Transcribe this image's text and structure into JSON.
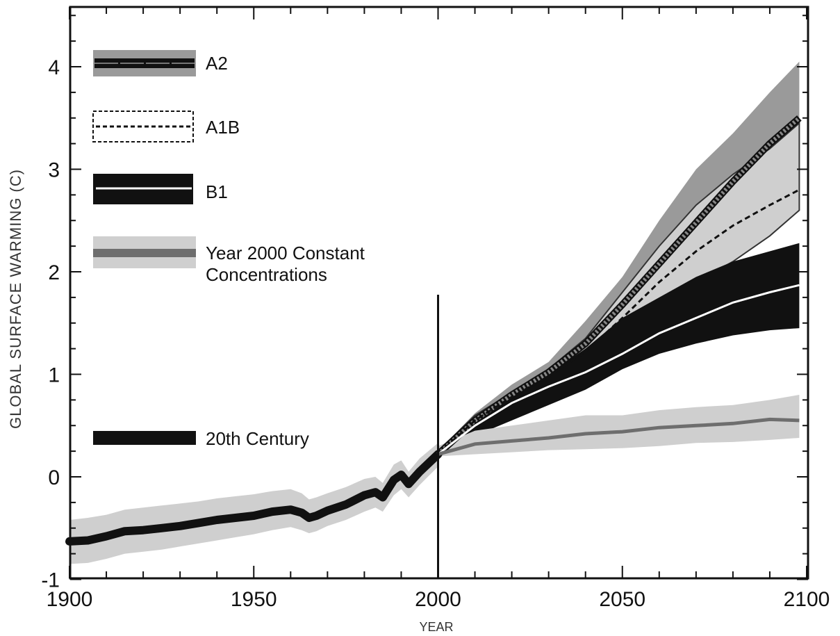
{
  "chart_data": {
    "type": "line",
    "xlabel": "YEAR",
    "ylabel": "GLOBAL SURFACE WARMING (C)",
    "xlim": [
      1900,
      2100
    ],
    "ylim": [
      -1,
      4.5
    ],
    "x_ticks": [
      1900,
      1950,
      2000,
      2050,
      2100
    ],
    "x_tick_labels": [
      "1900",
      "1950",
      "2000",
      "2050",
      "2100"
    ],
    "y_ticks": [
      -1,
      0,
      1,
      2,
      3,
      4
    ],
    "y_tick_labels": [
      "-1",
      "0",
      "1",
      "2",
      "3",
      "4"
    ],
    "vertical_marker_year": 2000,
    "legend_position": "top-left",
    "colors": {
      "black": "#111111",
      "dark_gray": "#6e6e6e",
      "mid_gray": "#9a9a9a",
      "light_gray": "#cfcfcf",
      "white": "#ffffff"
    },
    "series": [
      {
        "name": "20th Century",
        "x": [
          1900,
          1905,
          1910,
          1915,
          1920,
          1925,
          1930,
          1935,
          1940,
          1945,
          1950,
          1955,
          1960,
          1963,
          1965,
          1967,
          1970,
          1975,
          1980,
          1983,
          1985,
          1988,
          1990,
          1992,
          1995,
          2000
        ],
        "values": [
          -0.63,
          -0.62,
          -0.58,
          -0.53,
          -0.52,
          -0.5,
          -0.48,
          -0.45,
          -0.42,
          -0.4,
          -0.38,
          -0.34,
          -0.32,
          -0.35,
          -0.4,
          -0.38,
          -0.33,
          -0.27,
          -0.18,
          -0.15,
          -0.2,
          -0.03,
          0.02,
          -0.07,
          0.05,
          0.22
        ],
        "lower": [
          -0.85,
          -0.84,
          -0.8,
          -0.75,
          -0.73,
          -0.71,
          -0.68,
          -0.65,
          -0.62,
          -0.59,
          -0.56,
          -0.52,
          -0.49,
          -0.52,
          -0.55,
          -0.53,
          -0.48,
          -0.42,
          -0.34,
          -0.3,
          -0.34,
          -0.18,
          -0.12,
          -0.2,
          -0.08,
          0.1
        ],
        "upper": [
          -0.42,
          -0.4,
          -0.37,
          -0.32,
          -0.3,
          -0.28,
          -0.26,
          -0.24,
          -0.21,
          -0.19,
          -0.17,
          -0.14,
          -0.12,
          -0.16,
          -0.22,
          -0.2,
          -0.16,
          -0.1,
          -0.02,
          0.0,
          -0.06,
          0.12,
          0.16,
          0.05,
          0.18,
          0.33
        ]
      },
      {
        "name": "A2",
        "x": [
          2000,
          2010,
          2020,
          2030,
          2040,
          2050,
          2060,
          2070,
          2080,
          2090,
          2098
        ],
        "values": [
          0.22,
          0.55,
          0.8,
          1.02,
          1.3,
          1.68,
          2.08,
          2.48,
          2.88,
          3.25,
          3.5
        ],
        "lower": [
          0.2,
          0.5,
          0.7,
          0.88,
          1.1,
          1.4,
          1.8,
          2.15,
          2.45,
          2.8,
          3.1
        ],
        "upper": [
          0.25,
          0.62,
          0.9,
          1.12,
          1.52,
          1.95,
          2.5,
          3.0,
          3.35,
          3.75,
          4.05
        ]
      },
      {
        "name": "A1B",
        "x": [
          2000,
          2010,
          2020,
          2030,
          2040,
          2050,
          2060,
          2070,
          2080,
          2090,
          2098
        ],
        "values": [
          0.22,
          0.55,
          0.78,
          0.98,
          1.22,
          1.55,
          1.9,
          2.2,
          2.45,
          2.65,
          2.8
        ],
        "lower": [
          0.2,
          0.52,
          0.75,
          0.94,
          1.2,
          1.48,
          1.68,
          1.9,
          2.1,
          2.35,
          2.6
        ],
        "upper": [
          0.25,
          0.6,
          0.82,
          1.05,
          1.35,
          1.8,
          2.25,
          2.65,
          2.95,
          3.2,
          3.45
        ]
      },
      {
        "name": "B1",
        "x": [
          2000,
          2010,
          2020,
          2030,
          2040,
          2050,
          2060,
          2070,
          2080,
          2090,
          2098
        ],
        "values": [
          0.22,
          0.5,
          0.72,
          0.88,
          1.02,
          1.2,
          1.4,
          1.55,
          1.7,
          1.8,
          1.87
        ],
        "lower": [
          0.2,
          0.4,
          0.55,
          0.7,
          0.85,
          1.05,
          1.2,
          1.3,
          1.38,
          1.43,
          1.45
        ],
        "upper": [
          0.25,
          0.55,
          0.8,
          1.0,
          1.25,
          1.55,
          1.75,
          1.95,
          2.1,
          2.2,
          2.28
        ]
      },
      {
        "name": "Year 2000 Constant Concentrations",
        "x": [
          2000,
          2010,
          2020,
          2030,
          2040,
          2050,
          2060,
          2070,
          2080,
          2090,
          2098
        ],
        "values": [
          0.22,
          0.32,
          0.35,
          0.38,
          0.42,
          0.44,
          0.48,
          0.5,
          0.52,
          0.56,
          0.55
        ],
        "lower": [
          0.2,
          0.22,
          0.24,
          0.26,
          0.27,
          0.28,
          0.3,
          0.33,
          0.34,
          0.36,
          0.38
        ],
        "upper": [
          0.3,
          0.45,
          0.5,
          0.55,
          0.6,
          0.6,
          0.65,
          0.68,
          0.7,
          0.75,
          0.8
        ]
      }
    ]
  }
}
